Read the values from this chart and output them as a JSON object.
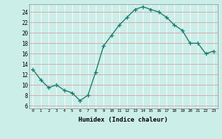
{
  "x": [
    0,
    1,
    2,
    3,
    4,
    5,
    6,
    7,
    8,
    9,
    10,
    11,
    12,
    13,
    14,
    15,
    16,
    17,
    18,
    19,
    20,
    21,
    22,
    23
  ],
  "y": [
    13,
    11,
    9.5,
    10,
    9,
    8.5,
    7,
    8,
    12.5,
    17.5,
    19.5,
    21.5,
    23,
    24.5,
    25,
    24.5,
    24,
    23,
    21.5,
    20.5,
    18,
    18,
    16,
    16.5
  ],
  "xlim": [
    -0.5,
    23.5
  ],
  "ylim": [
    5.5,
    25.5
  ],
  "yticks": [
    6,
    8,
    10,
    12,
    14,
    16,
    18,
    20,
    22,
    24
  ],
  "xticks": [
    0,
    1,
    2,
    3,
    4,
    5,
    6,
    7,
    8,
    9,
    10,
    11,
    12,
    13,
    14,
    15,
    16,
    17,
    18,
    19,
    20,
    21,
    22,
    23
  ],
  "xlabel": "Humidex (Indice chaleur)",
  "line_color": "#1a7a6e",
  "bg_color": "#cceee8",
  "grid_color_h": "#d4a0a0",
  "grid_color_v": "#ffffff",
  "marker": "+",
  "marker_size": 4,
  "linewidth": 1.0
}
